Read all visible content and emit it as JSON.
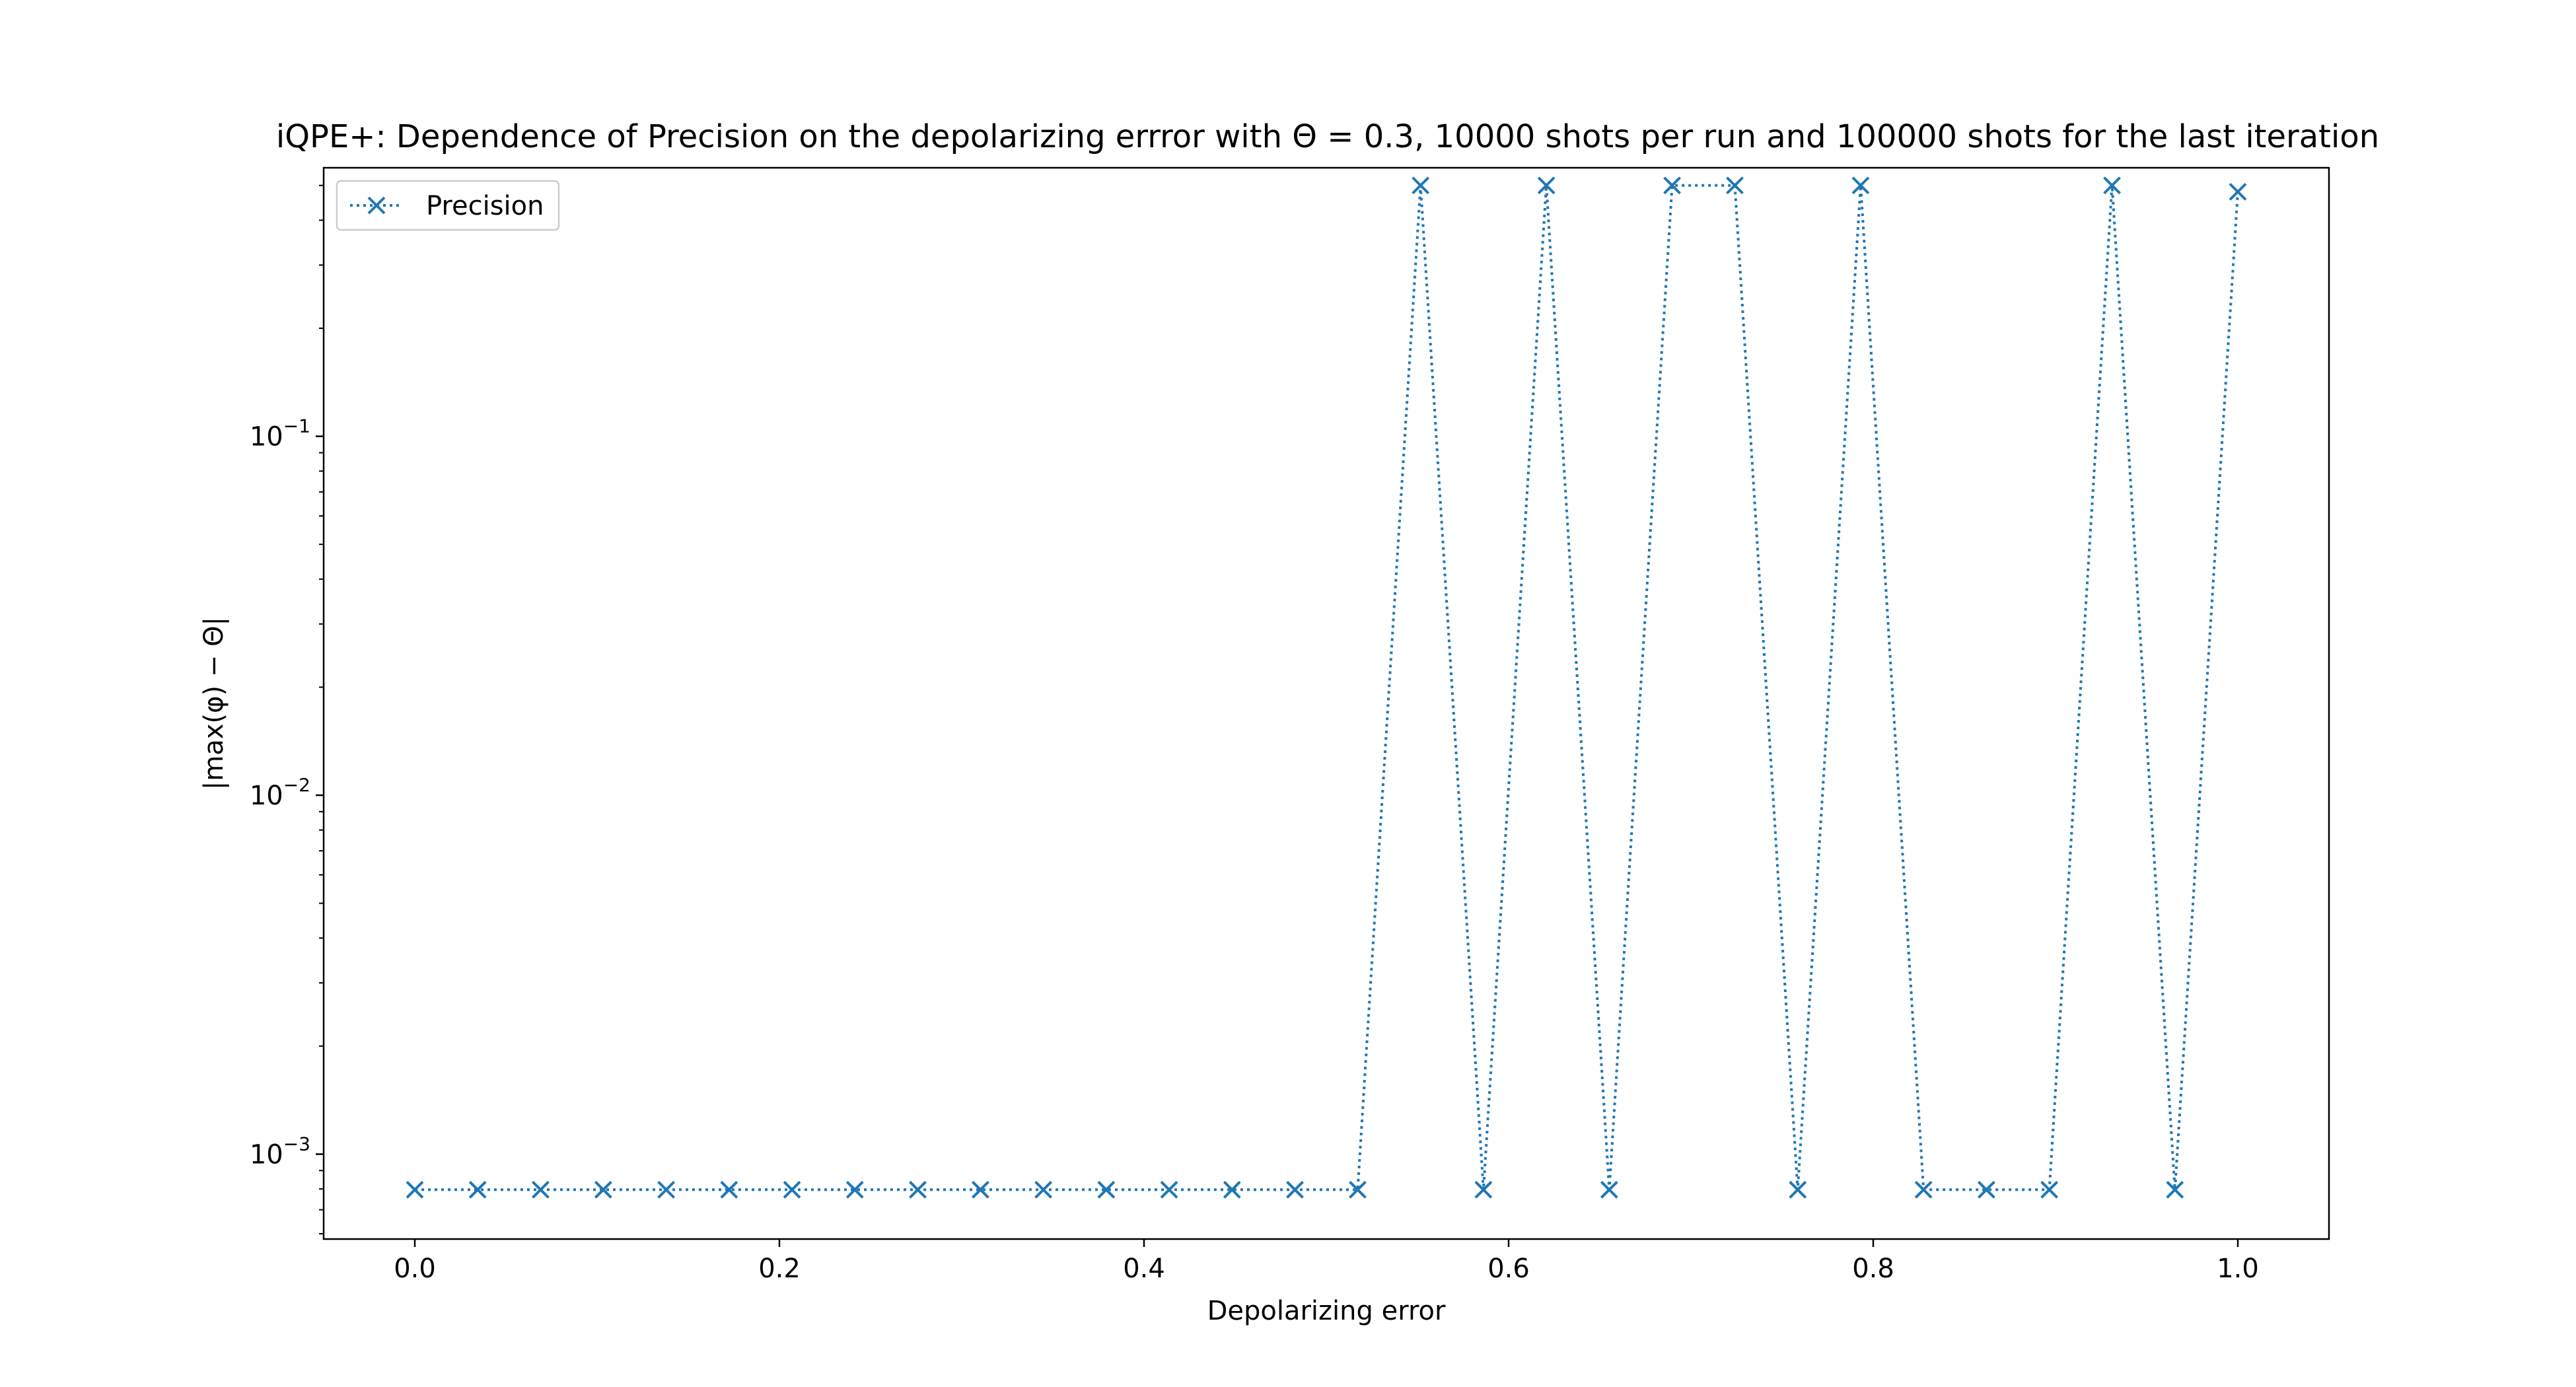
{
  "chart_data": {
    "type": "line",
    "title": "iQPE+: Dependence of Precision on the depolarizing errror with Θ = 0.3, 10000 shots per run and 100000 shots for the last iteration",
    "xlabel": "Depolarizing error",
    "ylabel": "|max(φ) − Θ|",
    "xlim": [
      -0.05,
      1.05
    ],
    "ylim": [
      0.00058,
      0.56
    ],
    "yscale": "log",
    "grid": false,
    "legend_position": "top-left",
    "x_ticks": [
      0.0,
      0.2,
      0.4,
      0.6,
      0.8,
      1.0
    ],
    "x_tick_labels": [
      "0.0",
      "0.2",
      "0.4",
      "0.6",
      "0.8",
      "1.0"
    ],
    "y_ticks": [
      0.001,
      0.01,
      0.1
    ],
    "y_tick_labels": [
      {
        "base": "10",
        "exp": "−3"
      },
      {
        "base": "10",
        "exp": "−2"
      },
      {
        "base": "10",
        "exp": "−1"
      }
    ],
    "series": [
      {
        "name": "Precision",
        "color": "#1f77b4",
        "line_style": "dotted",
        "marker": "x",
        "x": [
          0.0,
          0.0345,
          0.069,
          0.1034,
          0.1379,
          0.1724,
          0.2069,
          0.2414,
          0.2759,
          0.3103,
          0.3448,
          0.3793,
          0.4138,
          0.4483,
          0.4828,
          0.5172,
          0.5517,
          0.5862,
          0.6207,
          0.6552,
          0.6897,
          0.7241,
          0.7586,
          0.7931,
          0.8276,
          0.8621,
          0.8966,
          0.931,
          0.9655,
          1.0
        ],
        "y": [
          0.000796,
          0.000796,
          0.000796,
          0.000796,
          0.000796,
          0.000796,
          0.000796,
          0.000796,
          0.000796,
          0.000796,
          0.000796,
          0.000796,
          0.000796,
          0.000796,
          0.000796,
          0.000796,
          0.5,
          0.000796,
          0.5,
          0.000796,
          0.5,
          0.5,
          0.000796,
          0.5,
          0.000796,
          0.000796,
          0.000796,
          0.5,
          0.000796,
          0.48
        ]
      }
    ]
  }
}
